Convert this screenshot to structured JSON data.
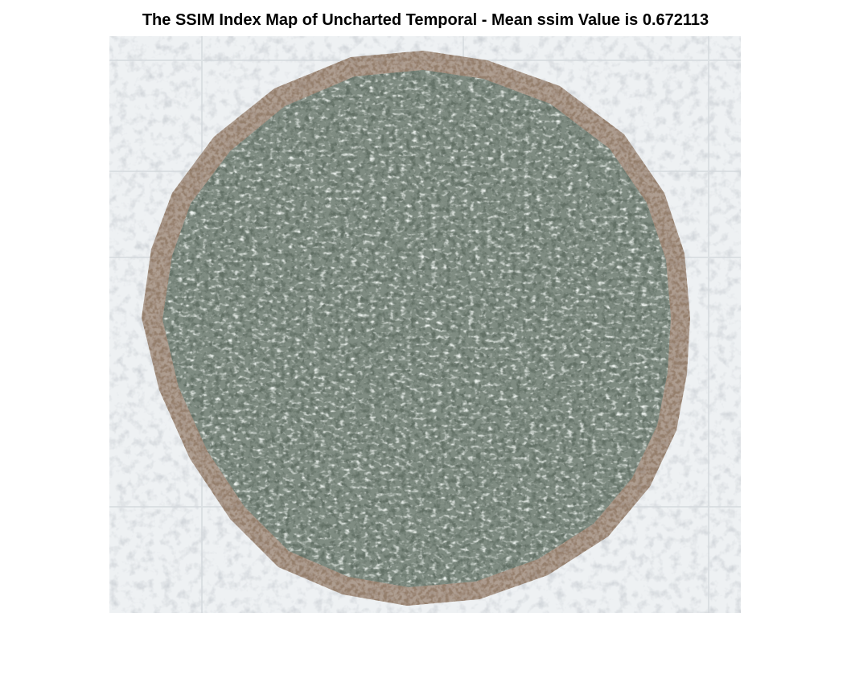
{
  "figure": {
    "title": "The SSIM Index Map of Uncharted Temporal - Mean ssim Value is 0.672113"
  },
  "image": {
    "content": "ssim-index-map",
    "mean_ssim": 0.672113,
    "colors": {
      "background": "#eef1f3",
      "disc_base": "#7f8c82",
      "disc_light": "#c9d2cc",
      "disc_dark": "#1f2a24",
      "rim_dark": "#3a2a1e",
      "rim_brown": "#7a5a40"
    }
  }
}
